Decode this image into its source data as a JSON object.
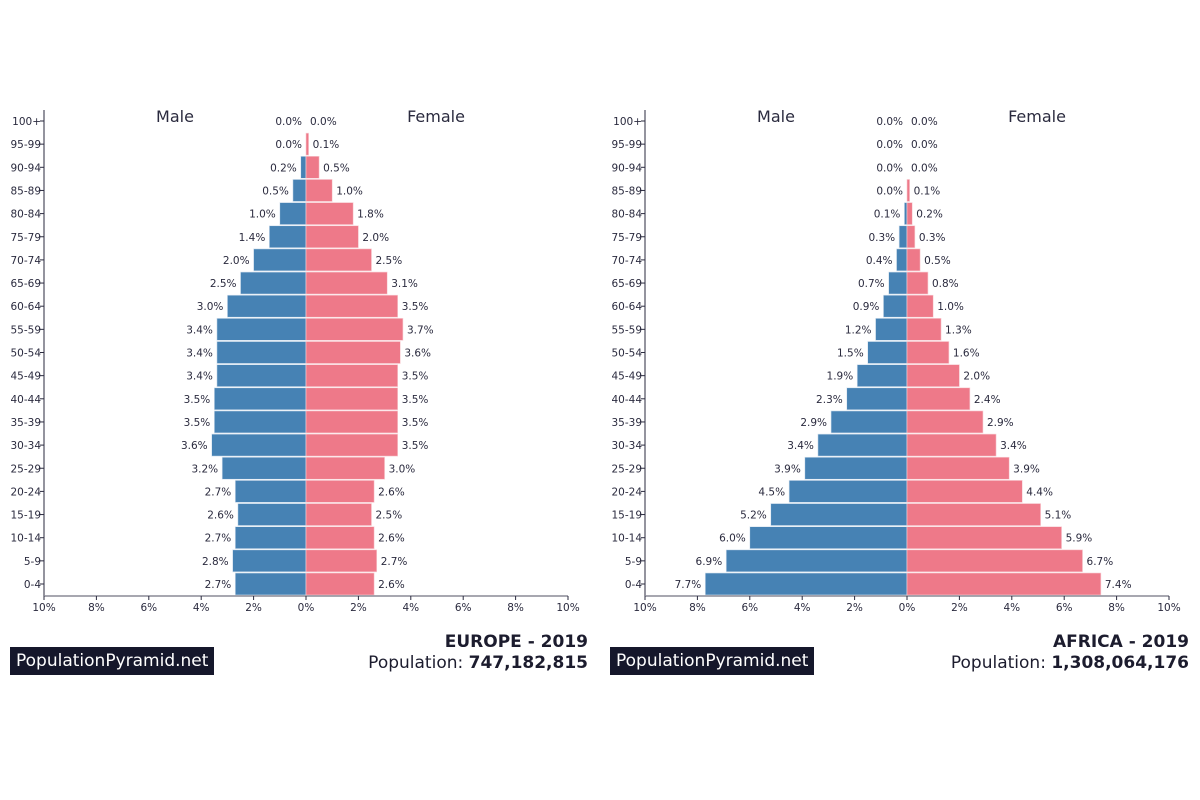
{
  "chart_data": [
    {
      "type": "bar",
      "orientation": "horizontal-pyramid",
      "title": "EUROPE - 2019",
      "population_label": "Population:",
      "population": "747,182,815",
      "brand": "PopulationPyramid.net",
      "left_label": "Male",
      "right_label": "Female",
      "categories": [
        "100+",
        "95-99",
        "90-94",
        "85-89",
        "80-84",
        "75-79",
        "70-74",
        "65-69",
        "60-64",
        "55-59",
        "50-54",
        "45-49",
        "40-44",
        "35-39",
        "30-34",
        "25-29",
        "20-24",
        "15-19",
        "10-14",
        "5-9",
        "0-4"
      ],
      "series": [
        {
          "name": "Male",
          "color": "#4682b4",
          "values": [
            0.0,
            0.0,
            0.2,
            0.5,
            1.0,
            1.4,
            2.0,
            2.5,
            3.0,
            3.4,
            3.4,
            3.4,
            3.5,
            3.5,
            3.6,
            3.2,
            2.7,
            2.6,
            2.7,
            2.8,
            2.7
          ]
        },
        {
          "name": "Female",
          "color": "#ee7989",
          "values": [
            0.0,
            0.1,
            0.5,
            1.0,
            1.8,
            2.0,
            2.5,
            3.1,
            3.5,
            3.7,
            3.6,
            3.5,
            3.5,
            3.5,
            3.5,
            3.0,
            2.6,
            2.5,
            2.6,
            2.7,
            2.6
          ]
        }
      ],
      "xlim": [
        -10,
        10
      ],
      "xticks": [
        "10%",
        "8%",
        "6%",
        "4%",
        "2%",
        "0%",
        "2%",
        "4%",
        "6%",
        "8%",
        "10%"
      ]
    },
    {
      "type": "bar",
      "orientation": "horizontal-pyramid",
      "title": "AFRICA - 2019",
      "population_label": "Population:",
      "population": "1,308,064,176",
      "brand": "PopulationPyramid.net",
      "left_label": "Male",
      "right_label": "Female",
      "categories": [
        "100+",
        "95-99",
        "90-94",
        "85-89",
        "80-84",
        "75-79",
        "70-74",
        "65-69",
        "60-64",
        "55-59",
        "50-54",
        "45-49",
        "40-44",
        "35-39",
        "30-34",
        "25-29",
        "20-24",
        "15-19",
        "10-14",
        "5-9",
        "0-4"
      ],
      "series": [
        {
          "name": "Male",
          "color": "#4682b4",
          "values": [
            0.0,
            0.0,
            0.0,
            0.0,
            0.1,
            0.3,
            0.4,
            0.7,
            0.9,
            1.2,
            1.5,
            1.9,
            2.3,
            2.9,
            3.4,
            3.9,
            4.5,
            5.2,
            6.0,
            6.9,
            7.7
          ]
        },
        {
          "name": "Female",
          "color": "#ee7989",
          "values": [
            0.0,
            0.0,
            0.0,
            0.1,
            0.2,
            0.3,
            0.5,
            0.8,
            1.0,
            1.3,
            1.6,
            2.0,
            2.4,
            2.9,
            3.4,
            3.9,
            4.4,
            5.1,
            5.9,
            6.7,
            7.4
          ]
        }
      ],
      "xlim": [
        -10,
        10
      ],
      "xticks": [
        "10%",
        "8%",
        "6%",
        "4%",
        "2%",
        "0%",
        "2%",
        "4%",
        "6%",
        "8%",
        "10%"
      ]
    }
  ]
}
